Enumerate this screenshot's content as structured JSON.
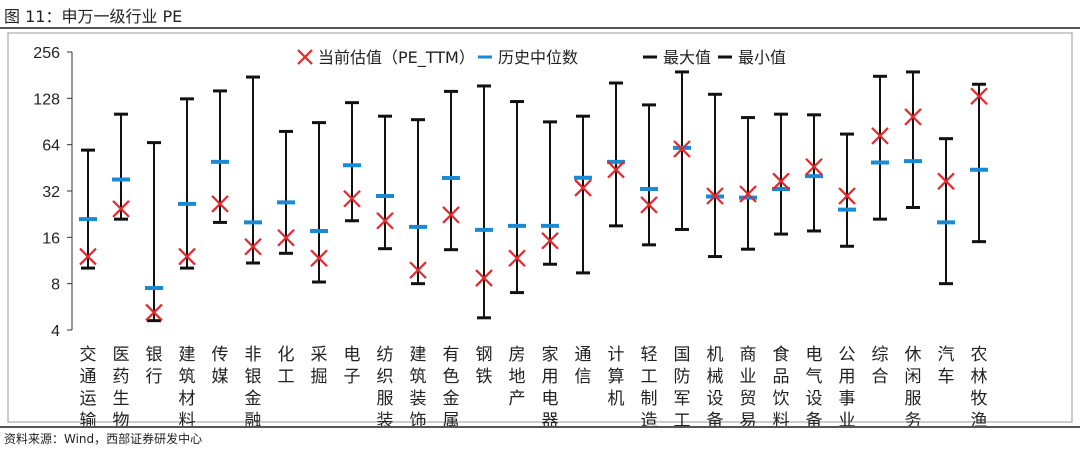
{
  "title": "图 11：申万一级行业 PE",
  "source": "资料来源：Wind，西部证券研发中心",
  "colors": {
    "current": "#e8262a",
    "median": "#1a8ad4",
    "range": "#111111"
  },
  "chart_data": {
    "type": "range-marker",
    "title": "申万一级行业 PE",
    "yscale": "log2",
    "ylim": [
      4,
      256
    ],
    "yticks": [
      "4",
      "8",
      "16",
      "32",
      "64",
      "128",
      "256"
    ],
    "legend": [
      "当前估值（PE_TTM）",
      "历史中位数",
      "最大值",
      "最小值"
    ],
    "legend_position": "top",
    "categories": [
      "交通运输",
      "医药生物",
      "银行",
      "建筑材料",
      "传媒",
      "非银金融",
      "化工",
      "采掘",
      "电子",
      "纺织服装",
      "建筑装饰",
      "有色金属",
      "钢铁",
      "房地产",
      "家用电器",
      "通信",
      "计算机",
      "轻工制造",
      "国防军工",
      "机械设备",
      "商业贸易",
      "食品饮料",
      "电气设备",
      "公用事业",
      "综合",
      "休闲服务",
      "汽车",
      "农林牧渔"
    ],
    "series": [
      {
        "name": "当前估值（PE_TTM）",
        "values": [
          12,
          24.5,
          5.2,
          12,
          26.4,
          13.9,
          15.9,
          11.7,
          28.5,
          20.5,
          9.8,
          22.4,
          8.7,
          11.7,
          15.2,
          33.5,
          44,
          26,
          60,
          29.7,
          30.6,
          37,
          46,
          29.7,
          73,
          97,
          37,
          132
        ]
      },
      {
        "name": "历史中位数",
        "values": [
          21,
          38,
          7.5,
          26.4,
          49.5,
          20,
          27,
          17.6,
          47,
          29.7,
          18.7,
          38.9,
          17.9,
          19,
          19,
          39,
          49.5,
          33,
          61,
          29.5,
          29,
          33,
          40,
          24.2,
          49,
          50,
          20,
          44
        ]
      },
      {
        "name": "最大值",
        "values": [
          59,
          101,
          66,
          127,
          143,
          176,
          78,
          89,
          120,
          98,
          93,
          142,
          154,
          122,
          90,
          98,
          161,
          116,
          190,
          136,
          96,
          101,
          100,
          75,
          178,
          190,
          70,
          158
        ]
      },
      {
        "name": "最小值",
        "values": [
          10.1,
          21,
          4.6,
          10.1,
          20,
          10.9,
          12.6,
          8.2,
          20.5,
          13.5,
          8,
          13.3,
          4.8,
          7,
          10.7,
          9.4,
          19,
          14.3,
          18,
          12,
          13.4,
          16.8,
          17.6,
          14,
          21,
          25,
          8,
          15
        ]
      }
    ]
  }
}
